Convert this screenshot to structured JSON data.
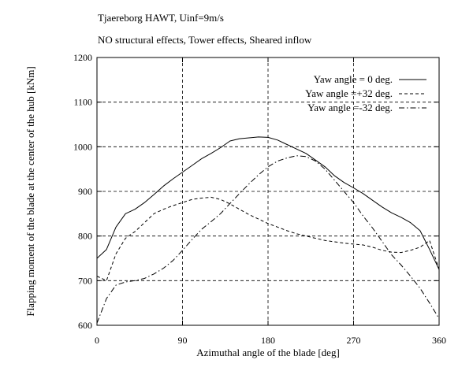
{
  "header": {
    "line1": "Tjaereborg HAWT, Uinf=9m/s",
    "line2": "NO structural effects, Tower effects, Sheared inflow"
  },
  "chart_data": {
    "type": "line",
    "xlabel": "Azimuthal angle of the blade [deg]",
    "ylabel": "Flapping moment of the blade at the center of the hub [kNm]",
    "xlim": [
      0,
      360
    ],
    "ylim": [
      600,
      1200
    ],
    "xticks": [
      0,
      90,
      180,
      270,
      360
    ],
    "yticks": [
      600,
      700,
      800,
      900,
      1000,
      1100,
      1200
    ],
    "grid": "vertical and horizontal dashed at major ticks",
    "legend_position": "top-right",
    "series": [
      {
        "name": "Yaw angle =  0 deg.",
        "style": "solid",
        "x": [
          0,
          10,
          20,
          30,
          40,
          50,
          60,
          70,
          80,
          90,
          100,
          110,
          120,
          130,
          140,
          150,
          160,
          170,
          180,
          190,
          200,
          210,
          220,
          230,
          240,
          250,
          260,
          270,
          280,
          290,
          300,
          310,
          320,
          330,
          340,
          350,
          360
        ],
        "y": [
          750,
          770,
          820,
          850,
          860,
          875,
          893,
          912,
          928,
          943,
          958,
          973,
          985,
          998,
          1013,
          1018,
          1020,
          1022,
          1021,
          1015,
          1005,
          995,
          985,
          970,
          955,
          935,
          920,
          908,
          895,
          880,
          865,
          852,
          842,
          830,
          812,
          770,
          725
        ]
      },
      {
        "name": "Yaw angle =+32 deg.",
        "style": "dashed",
        "x": [
          0,
          10,
          20,
          30,
          40,
          50,
          60,
          70,
          80,
          90,
          100,
          110,
          120,
          130,
          140,
          150,
          160,
          170,
          180,
          190,
          200,
          210,
          220,
          230,
          240,
          250,
          260,
          270,
          280,
          290,
          300,
          310,
          320,
          330,
          340,
          350,
          360
        ],
        "y": [
          710,
          700,
          760,
          795,
          810,
          830,
          850,
          860,
          868,
          875,
          882,
          885,
          887,
          882,
          872,
          860,
          848,
          838,
          828,
          820,
          812,
          805,
          800,
          795,
          790,
          787,
          784,
          782,
          780,
          775,
          768,
          764,
          763,
          768,
          775,
          790,
          725
        ]
      },
      {
        "name": "Yaw angle =-32 deg.",
        "style": "dashdot",
        "x": [
          0,
          10,
          20,
          30,
          40,
          50,
          60,
          70,
          80,
          90,
          100,
          110,
          120,
          130,
          140,
          150,
          160,
          170,
          180,
          190,
          200,
          210,
          220,
          230,
          240,
          250,
          260,
          270,
          280,
          290,
          300,
          310,
          320,
          330,
          340,
          350,
          360
        ],
        "y": [
          605,
          660,
          690,
          697,
          700,
          705,
          715,
          728,
          745,
          768,
          792,
          815,
          832,
          850,
          873,
          895,
          917,
          937,
          955,
          968,
          975,
          980,
          978,
          968,
          950,
          925,
          900,
          875,
          845,
          818,
          788,
          758,
          735,
          710,
          683,
          650,
          615
        ]
      }
    ]
  }
}
